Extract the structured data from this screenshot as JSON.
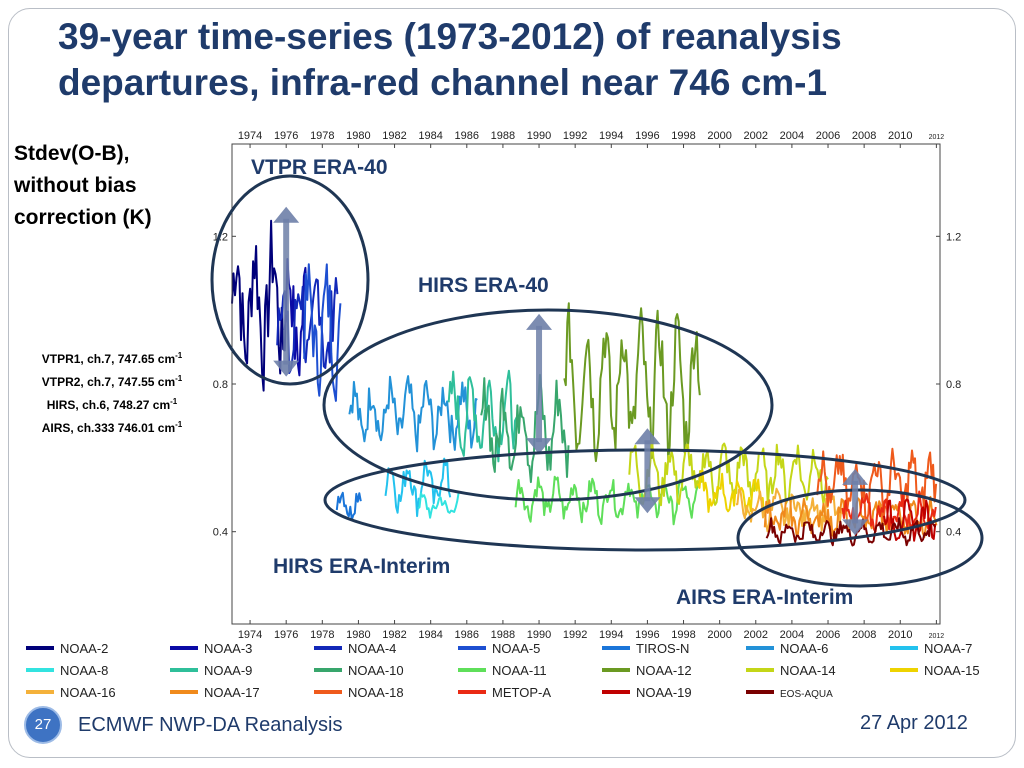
{
  "slide": {
    "title_line1": "39-year time-series (1973-2012) of reanalysis",
    "title_line2": "departures, infra-red channel near 746 cm-1",
    "side_heading": [
      "Stdev(O-B),",
      "without bias",
      "correction (K)"
    ],
    "channels": [
      {
        "text": "VTPR1, ch.7, 747.65 cm",
        "sup": "-1"
      },
      {
        "text": "VTPR2, ch.7, 747.55 cm",
        "sup": "-1"
      },
      {
        "text": "HIRS, ch.6, 748.27 cm",
        "sup": "-1"
      },
      {
        "text": "AIRS, ch.333 746.01 cm",
        "sup": "-1"
      }
    ],
    "page_number": "27",
    "footer_left": "ECMWF NWP-DA Reanalysis",
    "footer_right": "27 Apr 2012"
  },
  "chart_data": {
    "type": "line",
    "x_ticks": [
      "1974",
      "1976",
      "1978",
      "1980",
      "1982",
      "1984",
      "1986",
      "1988",
      "1990",
      "1992",
      "1994",
      "1996",
      "1998",
      "2000",
      "2002",
      "2004",
      "2006",
      "2008",
      "2010",
      "2012"
    ],
    "y_ticks": [
      "0.4",
      "0.8",
      "1.2"
    ],
    "xlim": [
      1973,
      2012.2
    ],
    "ylim": [
      0.15,
      1.45
    ],
    "grid": false,
    "annotations": [
      {
        "label": "VTPR ERA-40",
        "x": 1976,
        "y_low": 0.82,
        "y_high": 1.28
      },
      {
        "label": "HIRS ERA-40",
        "x": 1990,
        "y_low": 0.61,
        "y_high": 0.99
      },
      {
        "label": "HIRS ERA-Interim",
        "x": 1996,
        "y_low": 0.45,
        "y_high": 0.68
      },
      {
        "label": "AIRS ERA-Interim",
        "x": 2007.5,
        "y_low": 0.39,
        "y_high": 0.57
      }
    ],
    "series": [
      {
        "name": "NOAA-2",
        "color": "#00007a",
        "x_start": 1973.0,
        "x_end": 1976.0,
        "base": 1.02,
        "amp": 0.13,
        "noise": 0.12
      },
      {
        "name": "NOAA-3",
        "color": "#0a0aa6",
        "x_start": 1975.9,
        "x_end": 1977.2,
        "base": 0.98,
        "amp": 0.12,
        "noise": 0.1
      },
      {
        "name": "NOAA-4",
        "color": "#1228b8",
        "x_start": 1975.5,
        "x_end": 1978.9,
        "base": 0.96,
        "amp": 0.11,
        "noise": 0.1
      },
      {
        "name": "NOAA-5",
        "color": "#1d4fd1",
        "x_start": 1977.0,
        "x_end": 1979.0,
        "base": 0.95,
        "amp": 0.1,
        "noise": 0.1
      },
      {
        "name": "TIROS-N",
        "color": "#1a75d9",
        "x_start": 1978.8,
        "x_end": 1980.2,
        "base": 0.48,
        "amp": 0.03,
        "noise": 0.03
      },
      {
        "name": "NOAA-6",
        "color": "#2392d8",
        "x_start": 1979.5,
        "x_end": 1986.6,
        "base": 0.72,
        "amp": 0.06,
        "noise": 0.05
      },
      {
        "name": "NOAA-7",
        "color": "#23c2ee",
        "x_start": 1981.5,
        "x_end": 1985.1,
        "base": 0.53,
        "amp": 0.05,
        "noise": 0.04
      },
      {
        "name": "NOAA-8",
        "color": "#32e3e0",
        "x_start": 1983.3,
        "x_end": 1985.6,
        "base": 0.47,
        "amp": 0.02,
        "noise": 0.02
      },
      {
        "name": "NOAA-9",
        "color": "#2fbf9a",
        "x_start": 1985.0,
        "x_end": 1988.9,
        "base": 0.72,
        "amp": 0.07,
        "noise": 0.06
      },
      {
        "name": "NOAA-10",
        "color": "#38a66c",
        "x_start": 1986.8,
        "x_end": 1991.7,
        "base": 0.68,
        "amp": 0.09,
        "noise": 0.07
      },
      {
        "name": "NOAA-11",
        "color": "#5fdf5a",
        "x_start": 1988.7,
        "x_end": 1998.9,
        "base": 0.49,
        "amp": 0.04,
        "noise": 0.03
      },
      {
        "name": "NOAA-12",
        "color": "#6b9a22",
        "x_start": 1991.4,
        "x_end": 1998.9,
        "base": 0.8,
        "amp": 0.14,
        "noise": 0.08
      },
      {
        "name": "NOAA-14",
        "color": "#c4d618",
        "x_start": 1995.0,
        "x_end": 2006.0,
        "base": 0.56,
        "amp": 0.06,
        "noise": 0.04
      },
      {
        "name": "NOAA-15",
        "color": "#eed300",
        "x_start": 1998.8,
        "x_end": 2002.5,
        "base": 0.5,
        "amp": 0.04,
        "noise": 0.03
      },
      {
        "name": "NOAA-16",
        "color": "#f4b13a",
        "x_start": 2000.9,
        "x_end": 2007.0,
        "base": 0.46,
        "amp": 0.03,
        "noise": 0.03
      },
      {
        "name": "NOAA-17",
        "color": "#f08a1c",
        "x_start": 2002.5,
        "x_end": 2012.0,
        "base": 0.44,
        "amp": 0.03,
        "noise": 0.03
      },
      {
        "name": "NOAA-18",
        "color": "#ef5a1c",
        "x_start": 2005.4,
        "x_end": 2012.0,
        "base": 0.53,
        "amp": 0.06,
        "noise": 0.05
      },
      {
        "name": "METOP-A",
        "color": "#ea2a14",
        "x_start": 2006.8,
        "x_end": 2012.0,
        "base": 0.45,
        "amp": 0.03,
        "noise": 0.03
      },
      {
        "name": "NOAA-19",
        "color": "#c00000",
        "x_start": 2009.1,
        "x_end": 2012.0,
        "base": 0.43,
        "amp": 0.03,
        "noise": 0.03
      },
      {
        "name": "EOS-AQUA",
        "color": "#7a0000",
        "x_start": 2002.6,
        "x_end": 2012.0,
        "base": 0.4,
        "amp": 0.02,
        "noise": 0.02
      }
    ]
  }
}
